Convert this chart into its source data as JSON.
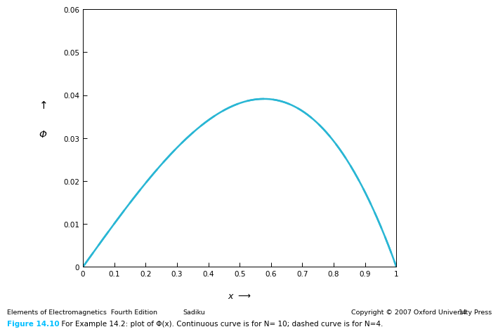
{
  "xlabel": "x",
  "ylabel": "Φ",
  "xlim": [
    0,
    1.0
  ],
  "ylim": [
    0,
    0.06
  ],
  "xticks": [
    0,
    0.1,
    0.2,
    0.3,
    0.4,
    0.5,
    0.6,
    0.7,
    0.8,
    0.9,
    1.0
  ],
  "yticks": [
    0,
    0.01,
    0.02,
    0.03,
    0.04,
    0.05,
    0.06
  ],
  "N10": 10,
  "N4": 4,
  "source_scale": 0.61,
  "curve_color": "#29B6D4",
  "background_color": "#FFFFFF",
  "caption_bold": "Figure 14.10",
  "caption_text": "  For Example 14.2: plot of Φ(x). Continuous curve is for N= 10; dashed curve is for N=4.",
  "caption_color": "#00BFFF",
  "footer_left": "Elements of Electromagnetics  Fourth Edition",
  "footer_center": "Sadiku",
  "footer_right": "Copyright © 2007 Oxford University Press",
  "footer_page": "14"
}
